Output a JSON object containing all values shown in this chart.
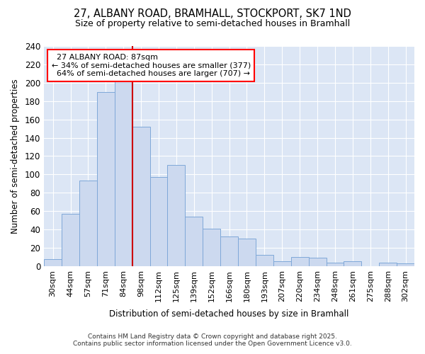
{
  "title_line1": "27, ALBANY ROAD, BRAMHALL, STOCKPORT, SK7 1ND",
  "title_line2": "Size of property relative to semi-detached houses in Bramhall",
  "xlabel": "Distribution of semi-detached houses by size in Bramhall",
  "ylabel": "Number of semi-detached properties",
  "bar_color": "#ccd9ef",
  "bar_edge_color": "#7fa8d8",
  "background_color": "#dce6f5",
  "grid_color": "#ffffff",
  "fig_bg_color": "#ffffff",
  "categories": [
    "30sqm",
    "44sqm",
    "57sqm",
    "71sqm",
    "84sqm",
    "98sqm",
    "112sqm",
    "125sqm",
    "139sqm",
    "152sqm",
    "166sqm",
    "180sqm",
    "193sqm",
    "207sqm",
    "220sqm",
    "234sqm",
    "248sqm",
    "261sqm",
    "275sqm",
    "288sqm",
    "302sqm"
  ],
  "values": [
    8,
    57,
    93,
    190,
    202,
    152,
    97,
    110,
    54,
    41,
    32,
    30,
    12,
    5,
    10,
    9,
    4,
    5,
    0,
    4,
    3
  ],
  "property_label": "27 ALBANY ROAD: 87sqm",
  "smaller_pct": 34,
  "smaller_count": 377,
  "larger_pct": 64,
  "larger_count": 707,
  "vline_color": "#cc0000",
  "vline_bin_index": 4,
  "ylim": [
    0,
    240
  ],
  "yticks": [
    0,
    20,
    40,
    60,
    80,
    100,
    120,
    140,
    160,
    180,
    200,
    220,
    240
  ],
  "footer_line1": "Contains HM Land Registry data © Crown copyright and database right 2025.",
  "footer_line2": "Contains public sector information licensed under the Open Government Licence v3.0."
}
